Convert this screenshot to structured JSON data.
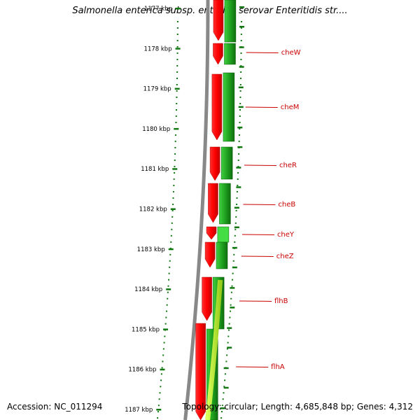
{
  "title": "Salmonella enterica subsp. enterica serovar Enteritidis str....",
  "accession_text": "Accession: NC_011294",
  "summary_text": "Topology: circular; Length: 4,685,848 bp; Genes: 4,312",
  "colors": {
    "red": "#ee1111",
    "green": "#22aa22",
    "lime": "#aaee22",
    "backbone": "#888888",
    "ticks": "#117711",
    "label": "#cc0000"
  },
  "scale": {
    "labels": [
      "1177 kbp",
      "1178 kbp",
      "1179 kbp",
      "1180 kbp",
      "1181 kbp",
      "1182 kbp",
      "1183 kbp",
      "1184 kbp",
      "1185 kbp",
      "1186 kbp",
      "1187 kbp"
    ]
  },
  "genes": [
    {
      "name": "cheW"
    },
    {
      "name": "cheM"
    },
    {
      "name": "cheR"
    },
    {
      "name": "cheB"
    },
    {
      "name": "cheY"
    },
    {
      "name": "cheZ"
    },
    {
      "name": "flhB"
    },
    {
      "name": "flhA"
    }
  ]
}
